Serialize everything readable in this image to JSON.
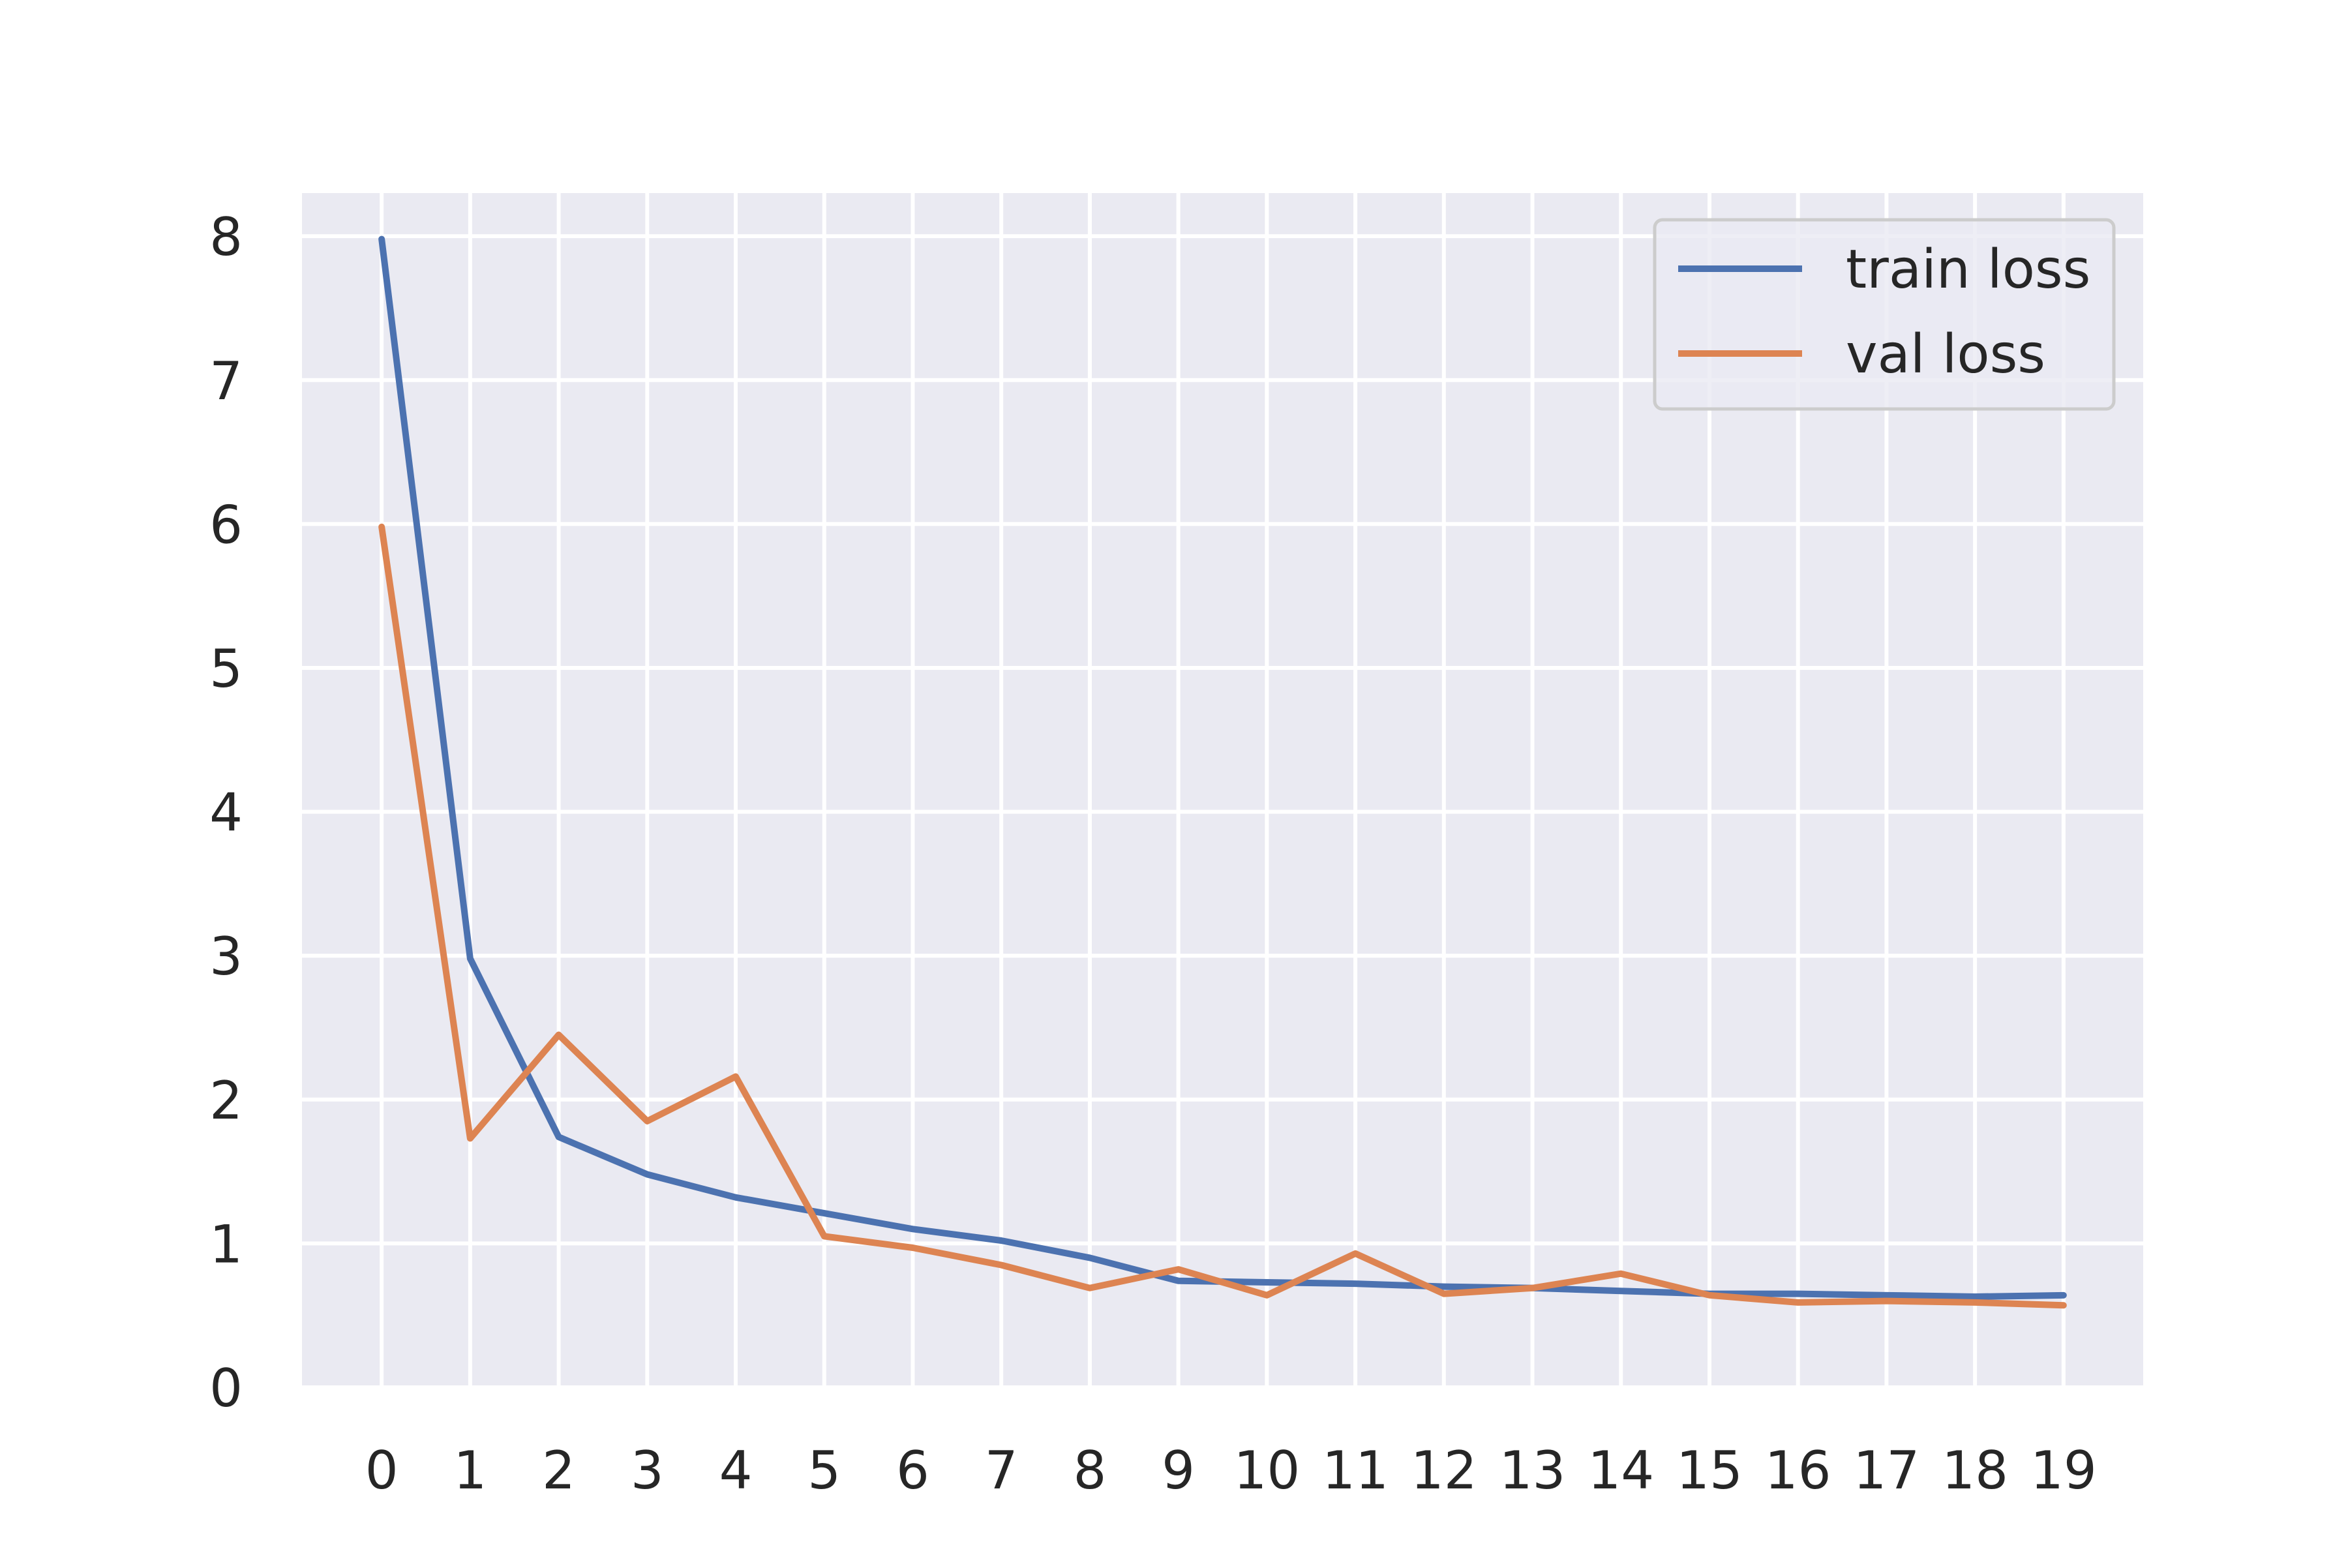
{
  "chart_data": {
    "type": "line",
    "title": "",
    "xlabel": "",
    "ylabel": "",
    "x": [
      0,
      1,
      2,
      3,
      4,
      5,
      6,
      7,
      8,
      9,
      10,
      11,
      12,
      13,
      14,
      15,
      16,
      17,
      18,
      19
    ],
    "x_tick_labels": [
      "0",
      "1",
      "2",
      "3",
      "4",
      "5",
      "6",
      "7",
      "8",
      "9",
      "10",
      "11",
      "12",
      "13",
      "14",
      "15",
      "16",
      "17",
      "18",
      "19"
    ],
    "y_tick_labels": [
      "0",
      "1",
      "2",
      "3",
      "4",
      "5",
      "6",
      "7",
      "8"
    ],
    "y_ticks": [
      0,
      1,
      2,
      3,
      4,
      5,
      6,
      7,
      8
    ],
    "xlim": [
      -0.9,
      19.9
    ],
    "ylim": [
      0,
      8.3
    ],
    "grid": true,
    "legend_position": "top-right",
    "background_color": "#eaeaf2",
    "grid_color": "#ffffff",
    "series": [
      {
        "name": "train loss",
        "color": "#4c72b0",
        "values": [
          7.98,
          2.98,
          1.74,
          1.48,
          1.32,
          1.21,
          1.1,
          1.02,
          0.9,
          0.74,
          0.73,
          0.72,
          0.7,
          0.69,
          0.67,
          0.65,
          0.65,
          0.64,
          0.63,
          0.64
        ]
      },
      {
        "name": "val loss",
        "color": "#dd8452",
        "values": [
          5.98,
          1.73,
          2.45,
          1.85,
          2.16,
          1.05,
          0.97,
          0.85,
          0.69,
          0.82,
          0.64,
          0.93,
          0.65,
          0.69,
          0.79,
          0.64,
          0.59,
          0.6,
          0.59,
          0.57
        ]
      }
    ]
  }
}
